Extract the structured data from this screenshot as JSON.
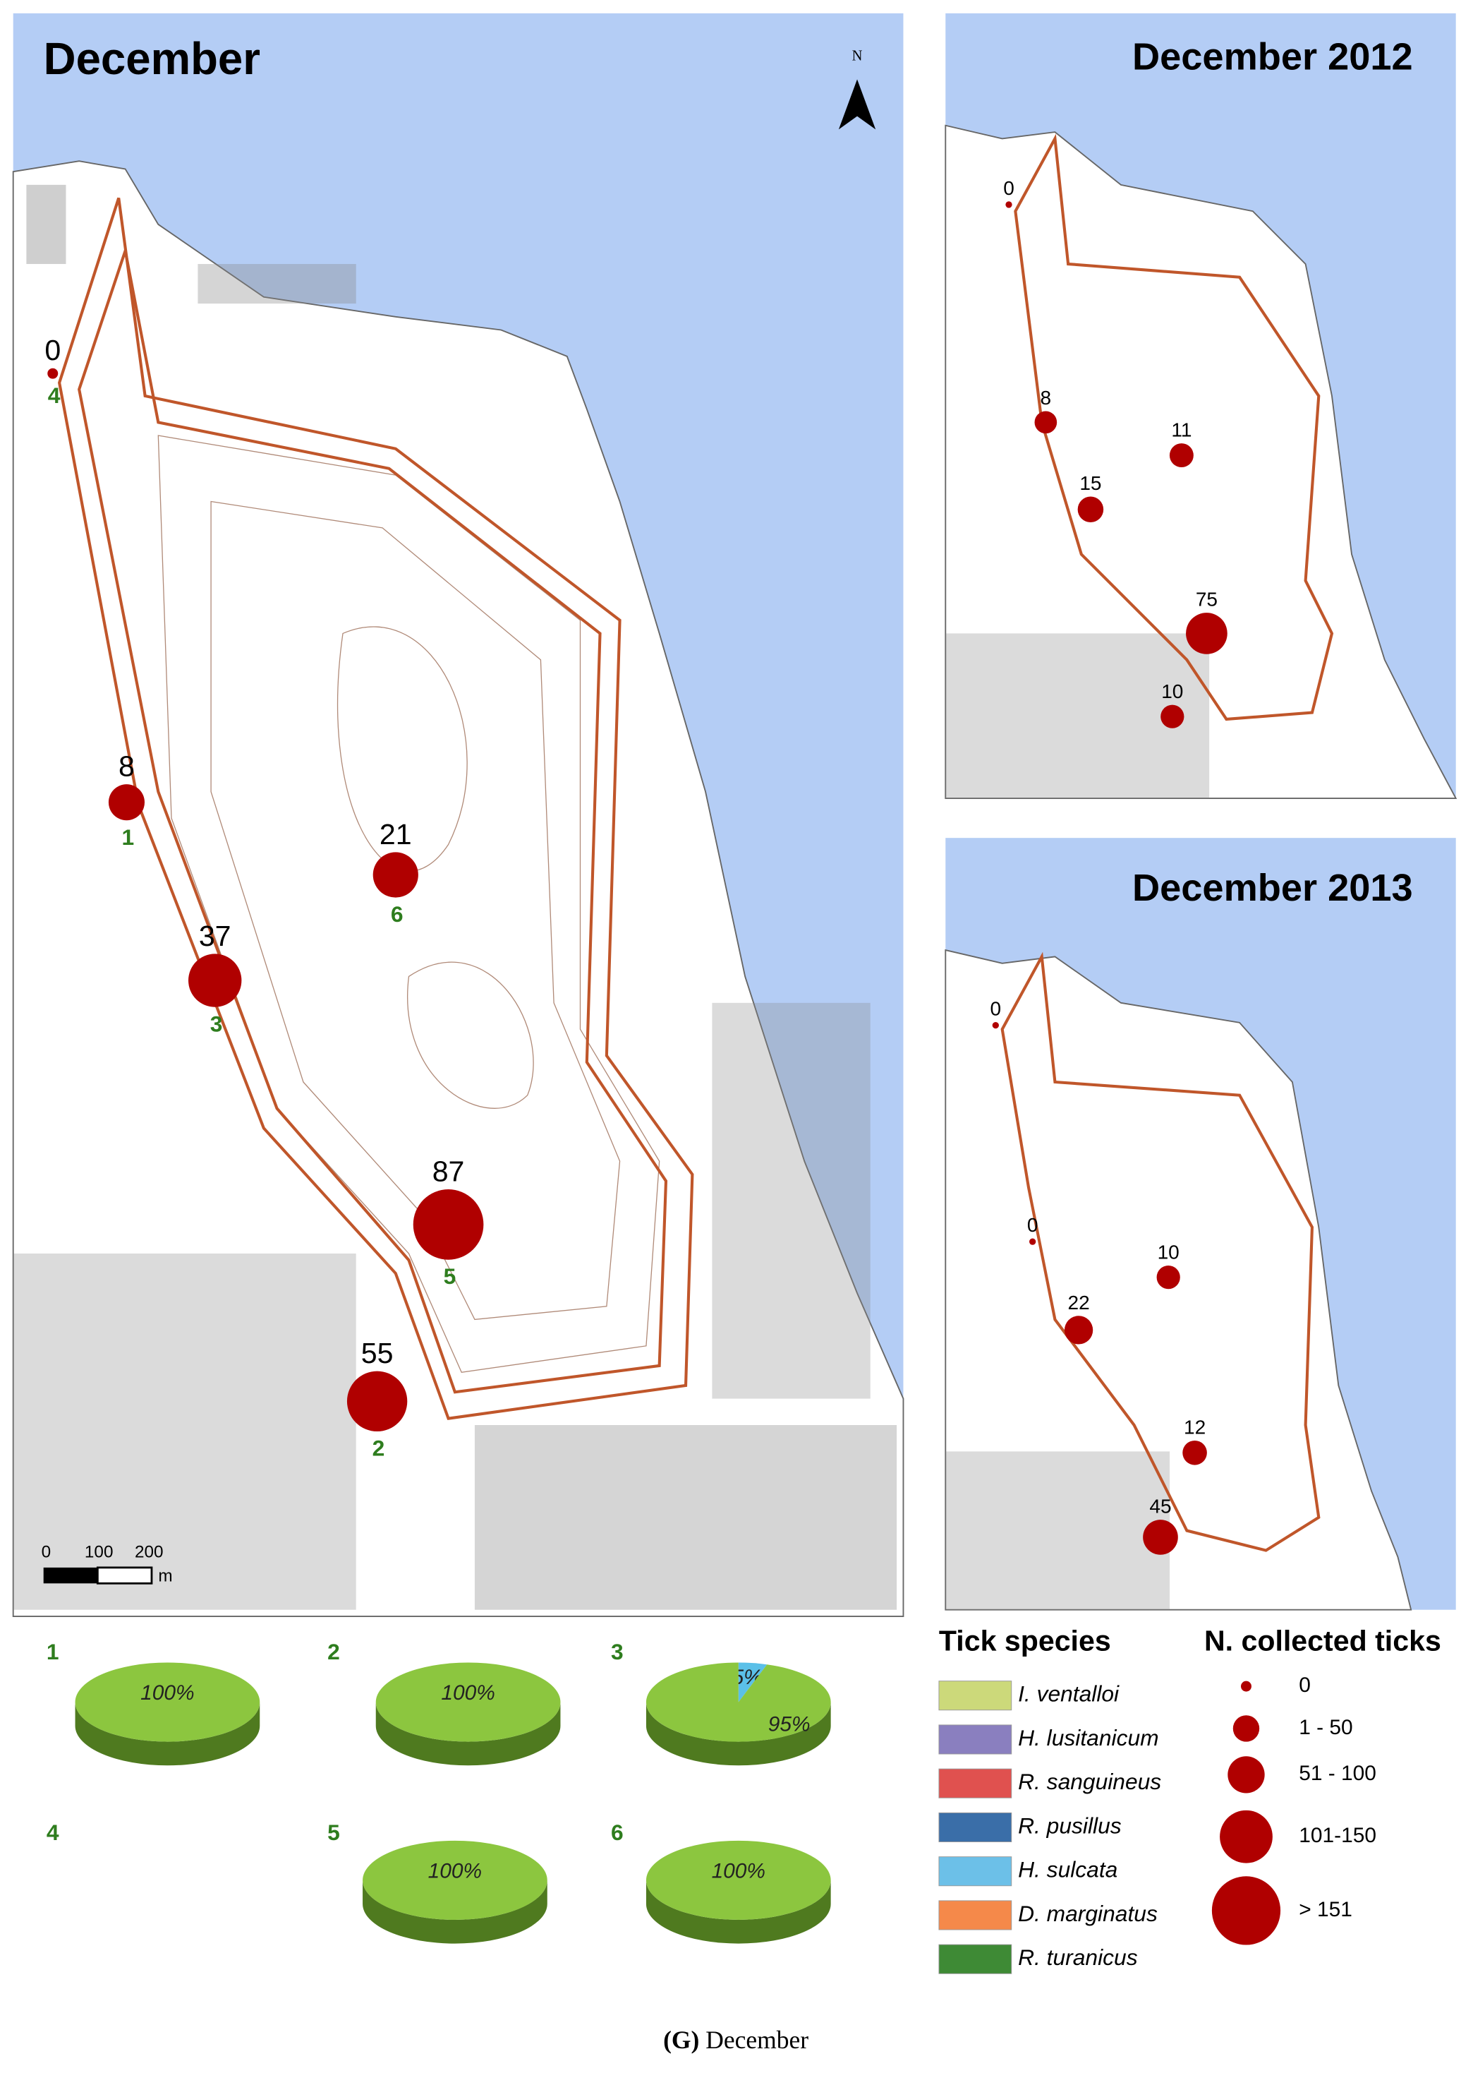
{
  "main_map": {
    "title": "December",
    "north": "N",
    "sites": [
      {
        "number": "4",
        "count": 0
      },
      {
        "number": "1",
        "count": 8
      },
      {
        "number": "6",
        "count": 21
      },
      {
        "number": "3",
        "count": 37
      },
      {
        "number": "5",
        "count": 87
      },
      {
        "number": "2",
        "count": 55
      }
    ],
    "scale": {
      "ticks": [
        "0",
        "100",
        "200"
      ],
      "unit": "m"
    }
  },
  "insets": [
    {
      "title": "December 2012",
      "counts": [
        0,
        8,
        11,
        15,
        75,
        10
      ]
    },
    {
      "title": "December 2013",
      "counts": [
        0,
        0,
        10,
        22,
        12,
        45
      ]
    }
  ],
  "pies": [
    {
      "number": "1",
      "values": [
        100
      ],
      "value_labels": [
        "100%"
      ],
      "colors": [
        "#8cc63f"
      ]
    },
    {
      "number": "2",
      "values": [
        100
      ],
      "value_labels": [
        "100%"
      ],
      "colors": [
        "#8cc63f"
      ]
    },
    {
      "number": "3",
      "values": [
        5,
        95
      ],
      "value_labels": [
        "5%",
        "95%"
      ],
      "colors": [
        "#5bc0e8",
        "#8cc63f"
      ]
    },
    {
      "number": "4",
      "values": [],
      "value_labels": [],
      "colors": []
    },
    {
      "number": "5",
      "values": [
        100
      ],
      "value_labels": [
        "100%"
      ],
      "colors": [
        "#8cc63f"
      ]
    },
    {
      "number": "6",
      "values": [
        100
      ],
      "value_labels": [
        "100%"
      ],
      "colors": [
        "#8cc63f"
      ]
    }
  ],
  "species_legend": {
    "title": "Tick species",
    "items": [
      {
        "name": "I. ventalloi",
        "color": "#ccd97a"
      },
      {
        "name": "H. lusitanicum",
        "color": "#8a7fbf"
      },
      {
        "name": "R. sanguineus",
        "color": "#e0514f"
      },
      {
        "name": "R. pusillus",
        "color": "#3a6ea8"
      },
      {
        "name": "H. sulcata",
        "color": "#6cc0e8"
      },
      {
        "name": "D. marginatus",
        "color": "#f5894a"
      },
      {
        "name": "R. turanicus",
        "color": "#3e8a35"
      }
    ]
  },
  "count_legend": {
    "title": "N. collected ticks",
    "classes": [
      "0",
      "1 - 50",
      "51 - 100",
      "101-150",
      "> 151"
    ]
  },
  "caption": {
    "label": "(G)",
    "text": "December"
  }
}
